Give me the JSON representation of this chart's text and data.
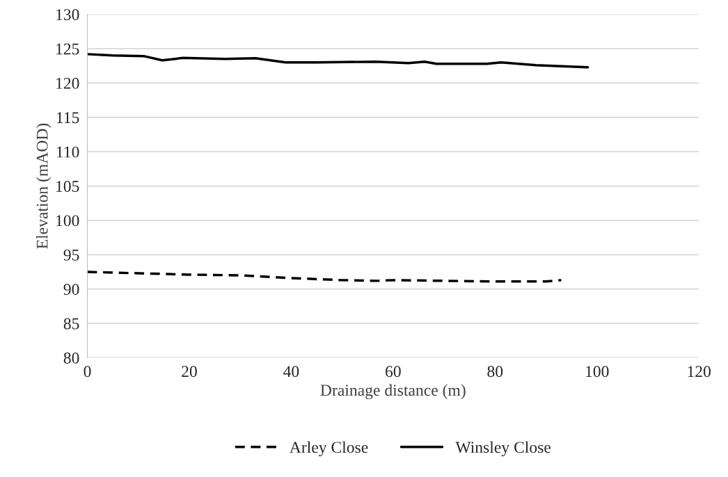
{
  "chart_data": {
    "type": "line",
    "xlabel": "Drainage distance (m)",
    "ylabel": "Elevation (mAOD)",
    "xlim": [
      0,
      120
    ],
    "xticks": [
      0,
      20,
      40,
      60,
      80,
      100,
      120
    ],
    "ylim": [
      80,
      130
    ],
    "yticks": [
      80,
      85,
      90,
      95,
      100,
      105,
      110,
      115,
      120,
      125,
      130
    ],
    "grid": "y",
    "legend": "bottom",
    "marker": "none",
    "series": [
      {
        "name": "Arley Close",
        "color": "#000000",
        "line_style": "dashed",
        "x": [
          0,
          5,
          10,
          20,
          30,
          40,
          50,
          57,
          60,
          70,
          80,
          90,
          93
        ],
        "values": [
          92.5,
          92.4,
          92.3,
          92.1,
          92.0,
          91.6,
          91.3,
          91.2,
          91.3,
          91.2,
          91.1,
          91.1,
          91.3
        ]
      },
      {
        "name": "Winsley Close",
        "color": "#000000",
        "line_style": "solid",
        "x": [
          0,
          5,
          11.2,
          14.7,
          18.8,
          27,
          33,
          38.9,
          45,
          56.6,
          63,
          66.2,
          68.5,
          78.4,
          81.2,
          88,
          98.2
        ],
        "values": [
          124.2,
          124.0,
          123.9,
          123.3,
          123.65,
          123.5,
          123.6,
          123.0,
          123.0,
          123.1,
          122.9,
          123.1,
          122.8,
          122.8,
          123.0,
          122.6,
          122.3
        ]
      }
    ]
  }
}
